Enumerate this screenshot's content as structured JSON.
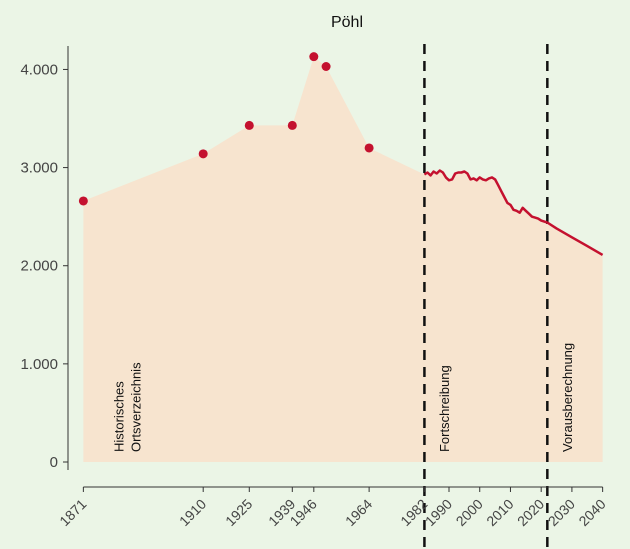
{
  "chart_data": {
    "type": "area",
    "title": "Pöhl",
    "xlabel": "",
    "ylabel": "",
    "ylim": [
      0,
      4300
    ],
    "xlim": [
      1866,
      2045
    ],
    "grid": false,
    "y_ticks": [
      {
        "value": 0,
        "label": "0"
      },
      {
        "value": 1000,
        "label": "1.000"
      },
      {
        "value": 2000,
        "label": "2.000"
      },
      {
        "value": 3000,
        "label": "3.000"
      },
      {
        "value": 4000,
        "label": "4.000"
      }
    ],
    "x_ticks": [
      {
        "value": 1871,
        "label": "1871"
      },
      {
        "value": 1910,
        "label": "1910"
      },
      {
        "value": 1925,
        "label": "1925"
      },
      {
        "value": 1939,
        "label": "1939"
      },
      {
        "value": 1946,
        "label": "1946"
      },
      {
        "value": 1964,
        "label": "1964"
      },
      {
        "value": 1982,
        "label": "1982"
      },
      {
        "value": 1990,
        "label": "1990"
      },
      {
        "value": 2000,
        "label": "2000"
      },
      {
        "value": 2010,
        "label": "2010"
      },
      {
        "value": 2020,
        "label": "2020"
      },
      {
        "value": 2030,
        "label": "2030"
      },
      {
        "value": 2040,
        "label": "2040"
      }
    ],
    "historical_points": {
      "x": [
        1871,
        1910,
        1925,
        1939,
        1946,
        1950,
        1964
      ],
      "y": [
        2660,
        3140,
        3430,
        3430,
        4130,
        4030,
        3200
      ]
    },
    "fortschreibung_line": {
      "x": [
        1982,
        1983,
        1984,
        1985,
        1986,
        1987,
        1988,
        1989,
        1990,
        1991,
        1992,
        1993,
        1994,
        1995,
        1996,
        1997,
        1998,
        1999,
        2000,
        2001,
        2002,
        2003,
        2004,
        2005,
        2006,
        2007,
        2008,
        2009,
        2010,
        2011,
        2012,
        2013,
        2014,
        2015,
        2016,
        2017,
        2018,
        2019,
        2020,
        2021,
        2022
      ],
      "y": [
        2930,
        2950,
        2920,
        2960,
        2940,
        2970,
        2950,
        2900,
        2870,
        2880,
        2940,
        2950,
        2950,
        2960,
        2940,
        2880,
        2890,
        2870,
        2900,
        2880,
        2870,
        2890,
        2900,
        2880,
        2820,
        2760,
        2700,
        2640,
        2620,
        2570,
        2560,
        2540,
        2590,
        2560,
        2530,
        2500,
        2490,
        2480,
        2460,
        2450,
        2440
      ]
    },
    "vorausberechnung_line": {
      "x": [
        2022,
        2025,
        2030,
        2035,
        2040
      ],
      "y": [
        2440,
        2380,
        2290,
        2200,
        2110
      ]
    },
    "vertical_markers": [
      1982,
      2022
    ],
    "annotations": [
      {
        "lines": [
          "Historisches",
          "Ortsverzeichnis"
        ]
      },
      {
        "lines": [
          "Fortschreibung"
        ]
      },
      {
        "lines": [
          "Vorausberechnung"
        ]
      }
    ],
    "colors": {
      "background": "#ebf5e6",
      "area_fill": "#f7e4cf",
      "point": "#c4112f",
      "line": "#c4112f",
      "marker_line": "#111111"
    }
  }
}
